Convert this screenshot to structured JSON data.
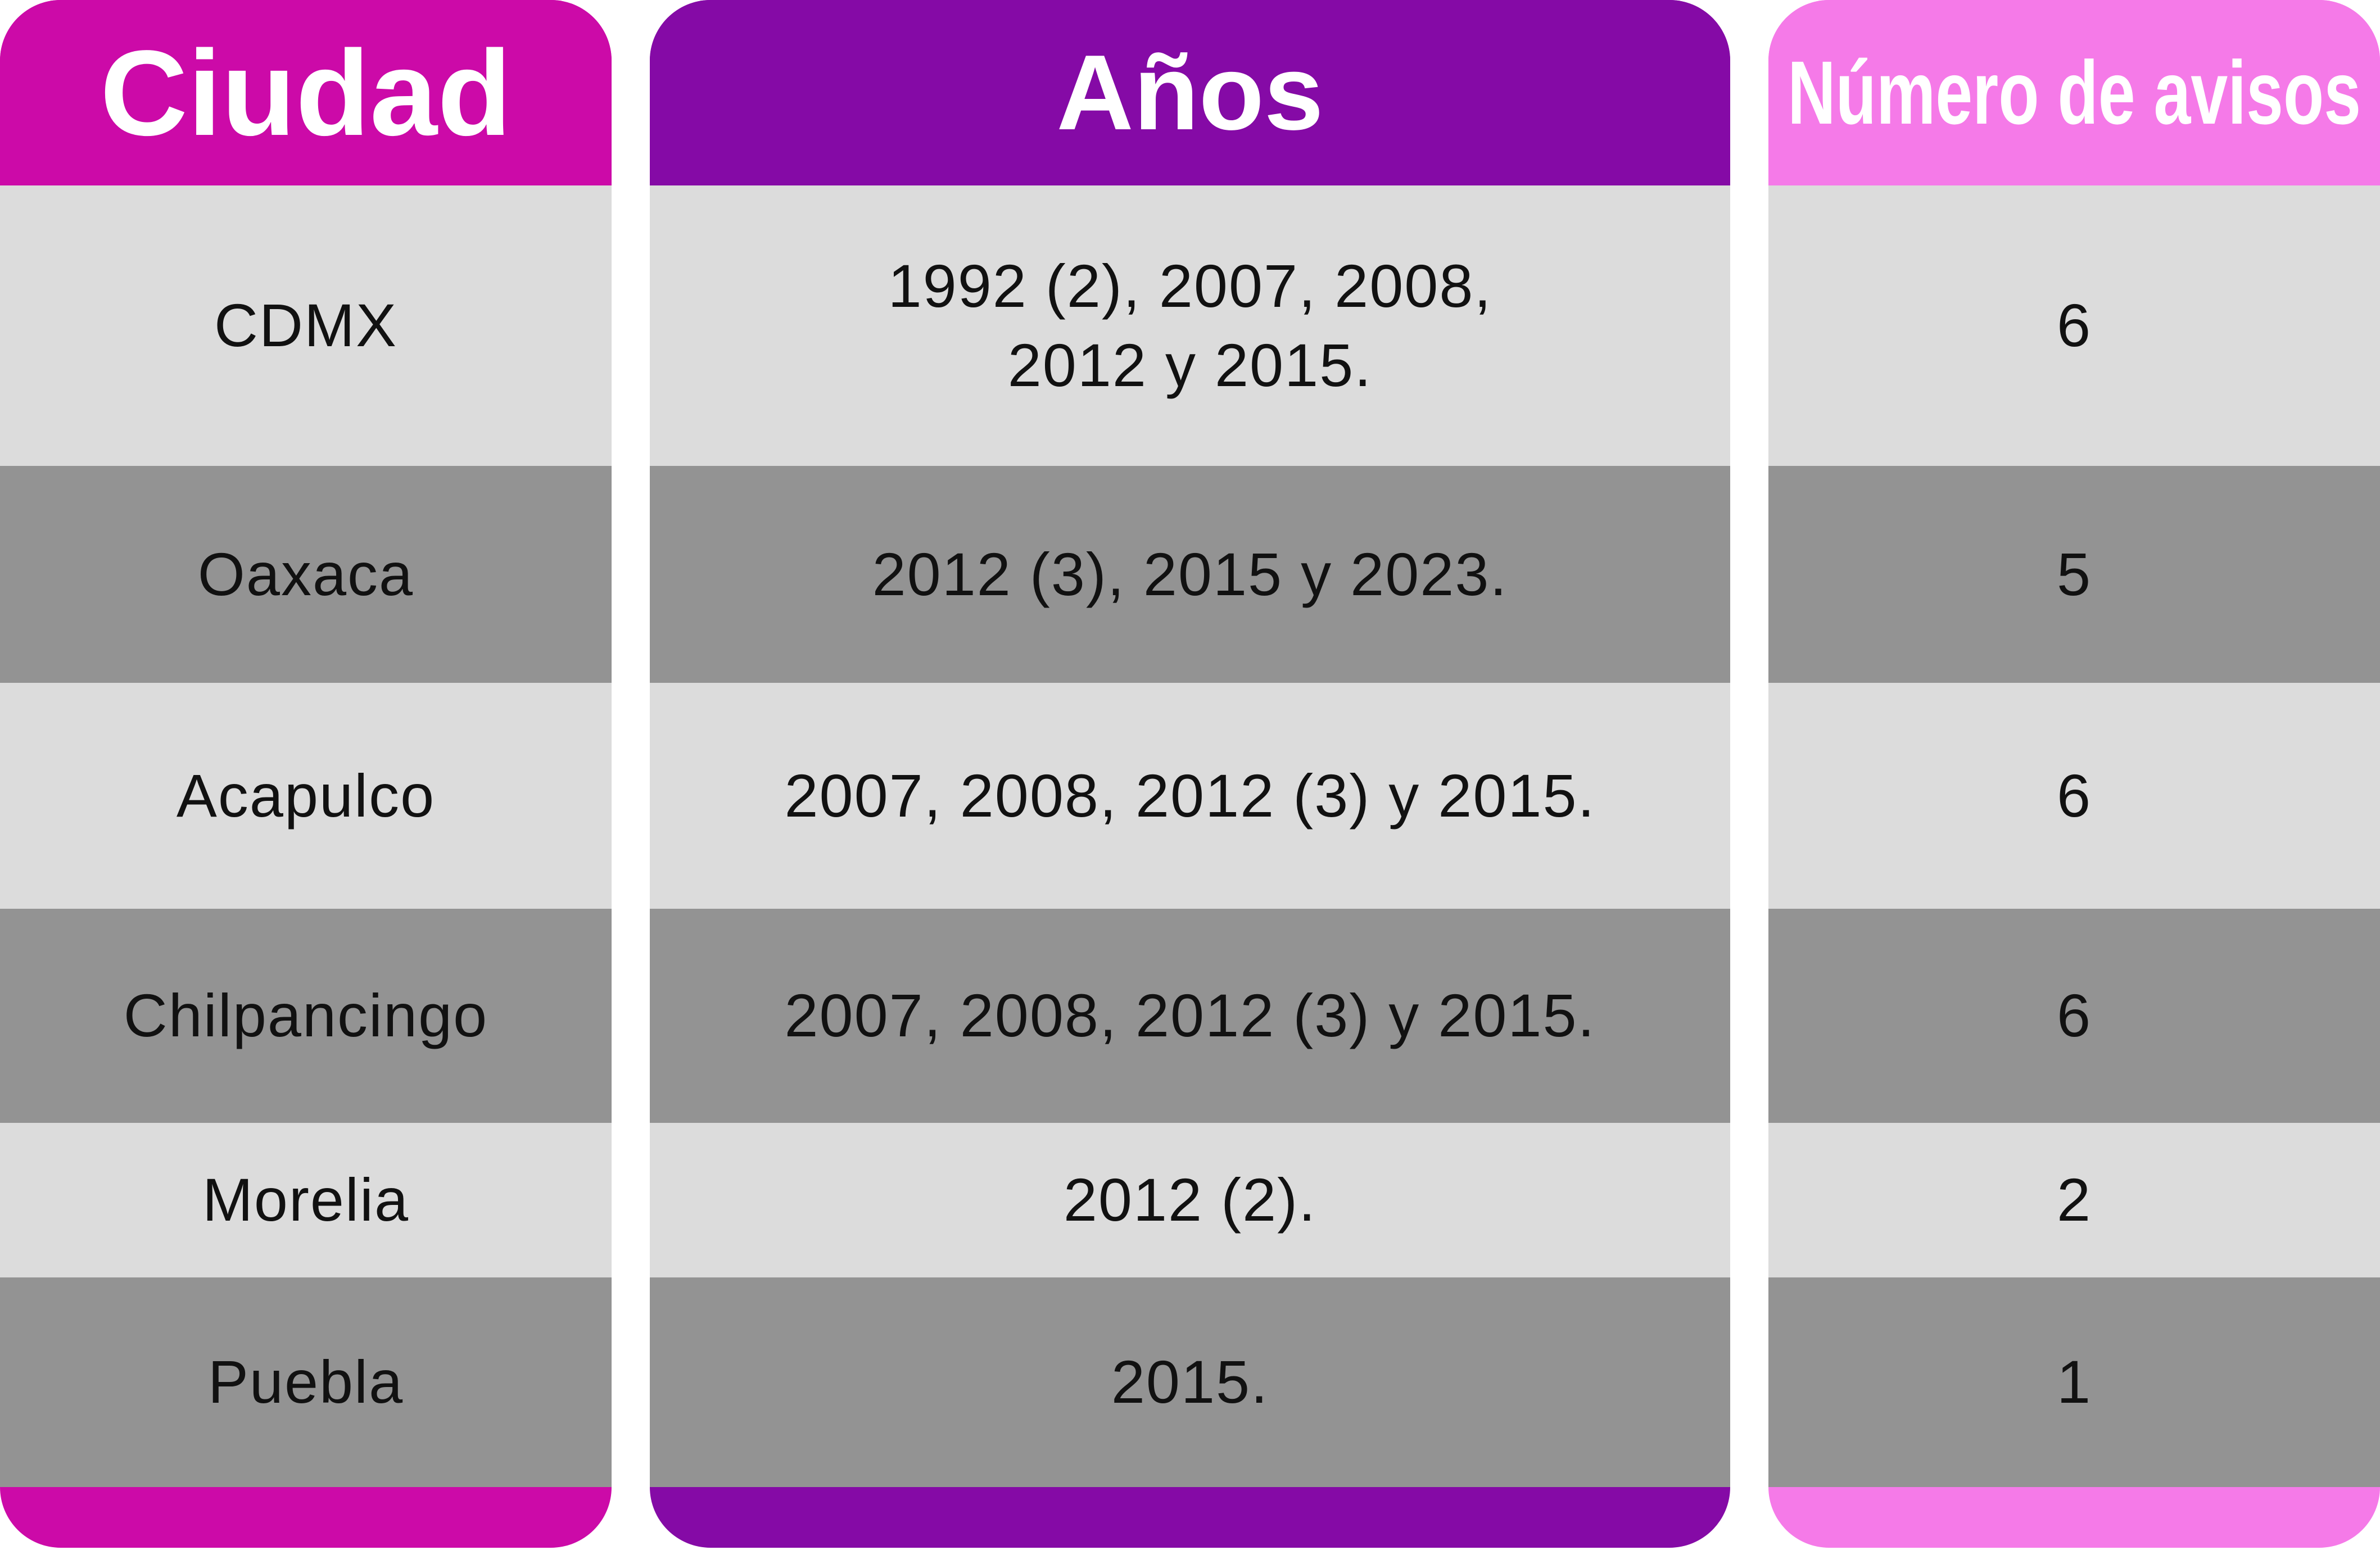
{
  "table": {
    "columns": [
      "Ciudad",
      "Años",
      "Número de avisos"
    ],
    "rows": [
      [
        "CDMX",
        "1992 (2), 2007, 2008,\n2012 y 2015.",
        6
      ],
      [
        "Oaxaca",
        "2012 (3), 2015 y 2023.",
        5
      ],
      [
        "Acapulco",
        "2007, 2008, 2012 (3) y 2015.",
        6
      ],
      [
        "Chilpancingo",
        "2007, 2008, 2012 (3) y 2015.",
        6
      ],
      [
        "Morelia",
        "2012 (2).",
        2
      ],
      [
        "Puebla",
        "2015.",
        1
      ]
    ]
  }
}
